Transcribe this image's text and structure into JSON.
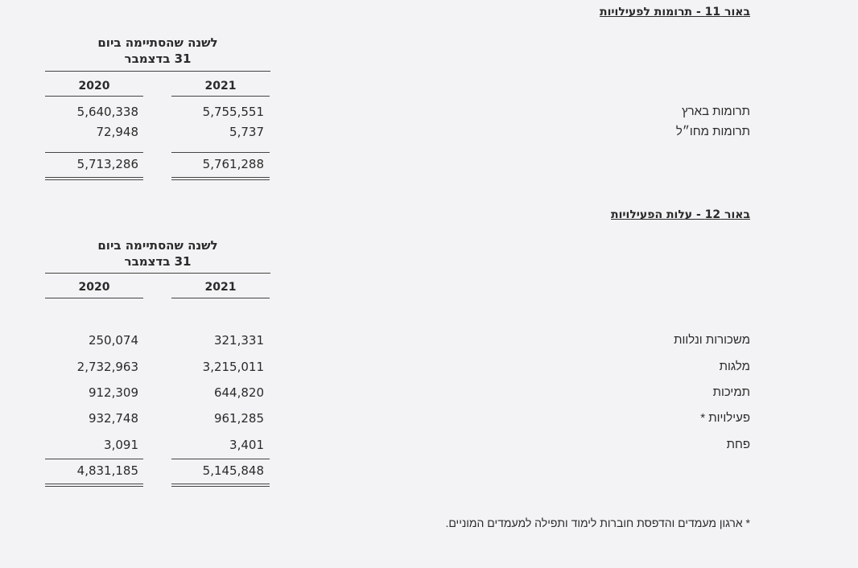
{
  "note11": {
    "heading": "באור 11 - תרומות לפעילויות",
    "column_header_line1": "לשנה שהסתיימה ביום",
    "column_header_line2": "31 בדצמבר",
    "years": [
      "2021",
      "2020"
    ],
    "rows": [
      {
        "label": "תרומות בארץ",
        "y2021": "5,755,551",
        "y2020": "5,640,338"
      },
      {
        "label": "תרומות מחו״ל",
        "y2021": "5,737",
        "y2020": "72,948"
      }
    ],
    "total": {
      "y2021": "5,761,288",
      "y2020": "5,713,286"
    }
  },
  "note12": {
    "heading": "באור 12 - עלות הפעילויות",
    "column_header_line1": "לשנה שהסתיימה ביום",
    "column_header_line2": "31 בדצמבר",
    "years": [
      "2021",
      "2020"
    ],
    "rows": [
      {
        "label": "משכורות ונלוות",
        "y2021": "321,331",
        "y2020": "250,074"
      },
      {
        "label": "מלגות",
        "y2021": "3,215,011",
        "y2020": "2,732,963"
      },
      {
        "label": "תמיכות",
        "y2021": "644,820",
        "y2020": "912,309"
      },
      {
        "label": "פעילויות *",
        "y2021": "961,285",
        "y2020": "932,748"
      },
      {
        "label": "פחת",
        "y2021": "3,401",
        "y2020": "3,091"
      }
    ],
    "total": {
      "y2021": "5,145,848",
      "y2020": "4,831,185"
    },
    "footnote": "* ארגון מעמדים והדפסת חוברות לימוד ותפילה למעמדים המוניים."
  }
}
